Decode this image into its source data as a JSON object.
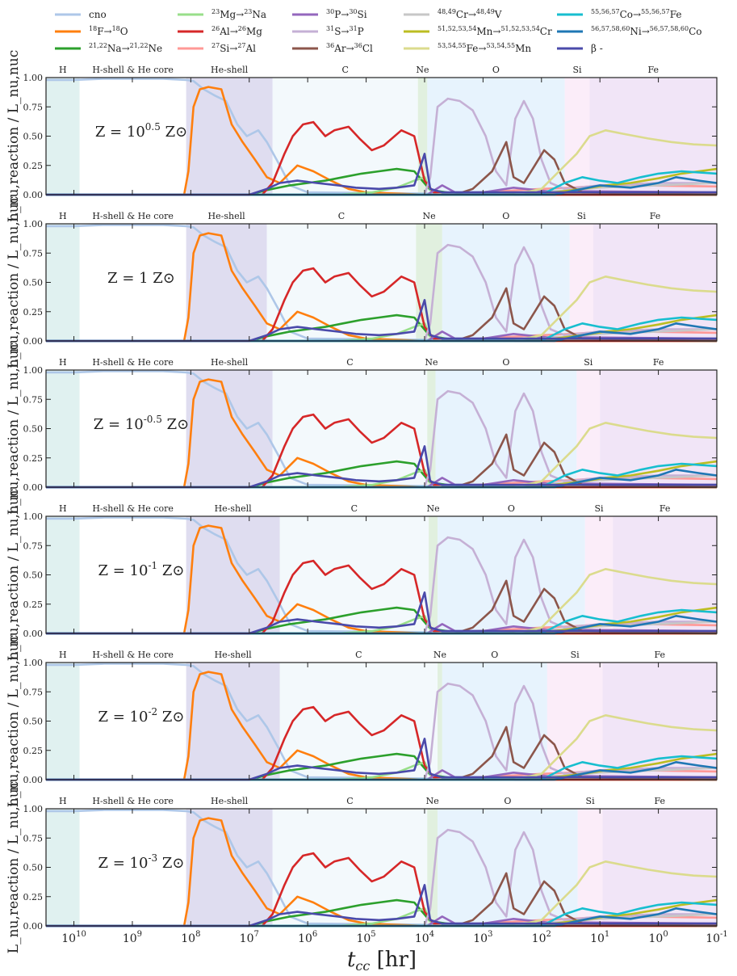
{
  "chart_data": {
    "type": "line",
    "xlabel": "t_cc [hr]",
    "ylabel": "L_nu,reaction / L_nu,nuc",
    "x_scale": "log-reversed",
    "xlim": [
      30000000000.0,
      0.1
    ],
    "ylim": [
      0,
      1
    ],
    "x_ticks": [
      {
        "label": "10^10",
        "value": 10000000000.0
      },
      {
        "label": "10^9",
        "value": 1000000000.0
      },
      {
        "label": "10^8",
        "value": 100000000.0
      },
      {
        "label": "10^7",
        "value": 10000000.0
      },
      {
        "label": "10^6",
        "value": 1000000.0
      },
      {
        "label": "10^5",
        "value": 100000.0
      },
      {
        "label": "10^4",
        "value": 10000.0
      },
      {
        "label": "10^3",
        "value": 1000.0
      },
      {
        "label": "10^2",
        "value": 100.0
      },
      {
        "label": "10^1",
        "value": 10
      },
      {
        "label": "10^0",
        "value": 1
      },
      {
        "label": "10^-1",
        "value": 0.1
      }
    ],
    "y_ticks": [
      "0.00",
      "0.25",
      "0.50",
      "0.75",
      "1.00"
    ],
    "legend": [
      {
        "key": "cno",
        "label": "cno",
        "color": "#aec7e8"
      },
      {
        "key": "f18",
        "label": "18F→18O",
        "color": "#ff7f0e"
      },
      {
        "key": "na",
        "label": "21,22Na→21,22Ne",
        "color": "#2ca02c"
      },
      {
        "key": "mg23",
        "label": "23Mg→23Na",
        "color": "#98df8a"
      },
      {
        "key": "al26",
        "label": "26Al→26Mg",
        "color": "#d62728"
      },
      {
        "key": "si27",
        "label": "27Si→27Al",
        "color": "#ff9896"
      },
      {
        "key": "p30",
        "label": "30P→30Si",
        "color": "#9467bd"
      },
      {
        "key": "s31",
        "label": "31S→31P",
        "color": "#c5b0d5"
      },
      {
        "key": "ar36",
        "label": "36Ar→36Cl",
        "color": "#8c564b"
      },
      {
        "key": "cr",
        "label": "48,49Cr→48,49V",
        "color": "#c7c7c7"
      },
      {
        "key": "mn",
        "label": "51,52,53,54Mn→51,52,53,54Cr",
        "color": "#bcbd22"
      },
      {
        "key": "fe",
        "label": "53,54,55Fe→53,54,55Mn",
        "color": "#dbdb8d"
      },
      {
        "key": "co",
        "label": "55,56,57Co→55,56,57Fe",
        "color": "#17becf"
      },
      {
        "key": "ni",
        "label": "56,57,58,60Ni→56,57,58,60Co",
        "color": "#1f77b4"
      },
      {
        "key": "beta",
        "label": "β -",
        "color": "#4a4aaa"
      }
    ],
    "phase_labels": [
      "H",
      "H-shell & He core",
      "He-shell",
      "C",
      "Ne",
      "O",
      "Si",
      "Fe"
    ],
    "panels": [
      {
        "label": "Z = 10^0.5 Z⊙",
        "phases": [
          8000000000.0,
          120000000.0,
          4000000.0,
          13000.0,
          9000.0,
          40,
          15
        ]
      },
      {
        "label": "Z = 1 Z⊙",
        "phases": [
          8000000000.0,
          120000000.0,
          5000000.0,
          14000.0,
          5000.0,
          33,
          13
        ]
      },
      {
        "label": "Z = 10^-0.5 Z⊙",
        "phases": [
          8000000000.0,
          120000000.0,
          4000000.0,
          9000.0,
          6500.0,
          25,
          10
        ]
      },
      {
        "label": "Z = 10^-1 Z⊙",
        "phases": [
          8000000000.0,
          120000000.0,
          3000000.0,
          8500.0,
          6000.0,
          18,
          6
        ]
      },
      {
        "label": "Z = 10^-2 Z⊙",
        "phases": [
          8000000000.0,
          120000000.0,
          3000000.0,
          6000.0,
          5000.0,
          80,
          9
        ]
      },
      {
        "label": "Z = 10^-3 Z⊙",
        "phases": [
          8000000000.0,
          120000000.0,
          4000000.0,
          9000.0,
          6000.0,
          24,
          9
        ]
      }
    ],
    "series": [
      {
        "key": "cno",
        "points": [
          [
            30000000000.0,
            0.98
          ],
          [
            10000000000.0,
            0.98
          ],
          [
            3000000000.0,
            0.99
          ],
          [
            1000000000.0,
            0.99
          ],
          [
            300000000.0,
            0.99
          ],
          [
            120000000.0,
            0.98
          ],
          [
            90000000.0,
            0.97
          ],
          [
            60000000.0,
            0.9
          ],
          [
            40000000.0,
            0.85
          ],
          [
            25000000.0,
            0.8
          ],
          [
            16000000.0,
            0.6
          ],
          [
            11000000.0,
            0.5
          ],
          [
            7000000.0,
            0.55
          ],
          [
            5000000.0,
            0.45
          ],
          [
            3000000.0,
            0.25
          ],
          [
            2000000.0,
            0.08
          ],
          [
            1000000.0,
            0.02
          ],
          [
            10000.0,
            0.01
          ],
          [
            0.1,
            0.0
          ]
        ]
      },
      {
        "key": "f18",
        "points": [
          [
            30000000000.0,
            0.0
          ],
          [
            130000000.0,
            0.0
          ],
          [
            110000000.0,
            0.2
          ],
          [
            90000000.0,
            0.75
          ],
          [
            70000000.0,
            0.9
          ],
          [
            50000000.0,
            0.92
          ],
          [
            30000000.0,
            0.9
          ],
          [
            20000000.0,
            0.6
          ],
          [
            13000000.0,
            0.45
          ],
          [
            8000000.0,
            0.3
          ],
          [
            5000000.0,
            0.15
          ],
          [
            3000000.0,
            0.1
          ],
          [
            1500000.0,
            0.25
          ],
          [
            800000.0,
            0.2
          ],
          [
            400000.0,
            0.12
          ],
          [
            200000.0,
            0.05
          ],
          [
            100000.0,
            0.02
          ],
          [
            10000.0,
            0.0
          ],
          [
            0.1,
            0.0
          ]
        ]
      },
      {
        "key": "na",
        "points": [
          [
            30000000000.0,
            0.0
          ],
          [
            10000000.0,
            0.0
          ],
          [
            5000000.0,
            0.04
          ],
          [
            2000000.0,
            0.08
          ],
          [
            1000000.0,
            0.1
          ],
          [
            500000.0,
            0.12
          ],
          [
            250000.0,
            0.15
          ],
          [
            120000.0,
            0.18
          ],
          [
            60000.0,
            0.2
          ],
          [
            30000.0,
            0.22
          ],
          [
            15000.0,
            0.2
          ],
          [
            8000.0,
            0.04
          ],
          [
            3000.0,
            0.01
          ],
          [
            0.1,
            0.0
          ]
        ]
      },
      {
        "key": "mg23",
        "points": [
          [
            30000000000.0,
            0.0
          ],
          [
            300000.0,
            0.0
          ],
          [
            80000.0,
            0.02
          ],
          [
            30000.0,
            0.06
          ],
          [
            15000.0,
            0.12
          ],
          [
            10000.0,
            0.15
          ],
          [
            8000.0,
            0.04
          ],
          [
            4000.0,
            0.01
          ],
          [
            0.1,
            0.0
          ]
        ]
      },
      {
        "key": "al26",
        "points": [
          [
            30000000000.0,
            0.0
          ],
          [
            6000000.0,
            0.0
          ],
          [
            4000000.0,
            0.1
          ],
          [
            2500000.0,
            0.35
          ],
          [
            1800000.0,
            0.5
          ],
          [
            1200000.0,
            0.6
          ],
          [
            800000.0,
            0.62
          ],
          [
            500000.0,
            0.5
          ],
          [
            350000.0,
            0.55
          ],
          [
            200000.0,
            0.58
          ],
          [
            130000.0,
            0.48
          ],
          [
            80000.0,
            0.38
          ],
          [
            50000.0,
            0.42
          ],
          [
            25000.0,
            0.55
          ],
          [
            15000.0,
            0.5
          ],
          [
            10000.0,
            0.12
          ],
          [
            7000.0,
            0.02
          ],
          [
            3000.0,
            0.01
          ],
          [
            1500.0,
            0.0
          ],
          [
            0.1,
            0.0
          ]
        ]
      },
      {
        "key": "si27",
        "points": [
          [
            30000000000.0,
            0.0
          ],
          [
            10000.0,
            0.0
          ],
          [
            3000.0,
            0.01
          ],
          [
            500.0,
            0.03
          ],
          [
            100.0,
            0.05
          ],
          [
            30,
            0.06
          ],
          [
            8,
            0.08
          ],
          [
            2,
            0.08
          ],
          [
            0.1,
            0.07
          ]
        ]
      },
      {
        "key": "p30",
        "points": [
          [
            30000000000.0,
            0.0
          ],
          [
            9000.0,
            0.0
          ],
          [
            5000.0,
            0.08
          ],
          [
            3000.0,
            0.02
          ],
          [
            1000.0,
            0.02
          ],
          [
            300.0,
            0.06
          ],
          [
            80,
            0.03
          ],
          [
            20,
            0.03
          ],
          [
            0.1,
            0.02
          ]
        ]
      },
      {
        "key": "s31",
        "points": [
          [
            30000000000.0,
            0.0
          ],
          [
            10000.0,
            0.0
          ],
          [
            8000.0,
            0.15
          ],
          [
            6000.0,
            0.75
          ],
          [
            4000.0,
            0.82
          ],
          [
            2500.0,
            0.8
          ],
          [
            1500.0,
            0.72
          ],
          [
            900.0,
            0.5
          ],
          [
            600.0,
            0.2
          ],
          [
            400.0,
            0.08
          ],
          [
            280.0,
            0.65
          ],
          [
            200.0,
            0.8
          ],
          [
            140.0,
            0.65
          ],
          [
            100.0,
            0.3
          ],
          [
            70,
            0.1
          ],
          [
            40,
            0.05
          ],
          [
            10,
            0.08
          ],
          [
            1,
            0.1
          ],
          [
            0.1,
            0.1
          ]
        ]
      },
      {
        "key": "ar36",
        "points": [
          [
            30000000000.0,
            0.0
          ],
          [
            3000.0,
            0.0
          ],
          [
            1500.0,
            0.05
          ],
          [
            700.0,
            0.2
          ],
          [
            400.0,
            0.45
          ],
          [
            300.0,
            0.15
          ],
          [
            200.0,
            0.1
          ],
          [
            130.0,
            0.25
          ],
          [
            90,
            0.38
          ],
          [
            60,
            0.3
          ],
          [
            40,
            0.1
          ],
          [
            20,
            0.02
          ],
          [
            0.1,
            0.0
          ]
        ]
      },
      {
        "key": "cr",
        "points": [
          [
            30000000000.0,
            0.0
          ],
          [
            1000.0,
            0.0
          ],
          [
            100.0,
            0.02
          ],
          [
            30,
            0.04
          ],
          [
            10,
            0.06
          ],
          [
            1,
            0.08
          ],
          [
            0.1,
            0.1
          ]
        ]
      },
      {
        "key": "mn",
        "points": [
          [
            30000000000.0,
            0.0
          ],
          [
            500.0,
            0.0
          ],
          [
            60,
            0.02
          ],
          [
            20,
            0.05
          ],
          [
            8,
            0.08
          ],
          [
            3,
            0.1
          ],
          [
            1,
            0.14
          ],
          [
            0.4,
            0.18
          ],
          [
            0.1,
            0.22
          ]
        ]
      },
      {
        "key": "fe",
        "points": [
          [
            30000000000.0,
            0.0
          ],
          [
            300.0,
            0.0
          ],
          [
            100.0,
            0.05
          ],
          [
            50,
            0.2
          ],
          [
            25,
            0.35
          ],
          [
            15,
            0.5
          ],
          [
            8,
            0.55
          ],
          [
            4,
            0.52
          ],
          [
            1.5,
            0.48
          ],
          [
            0.6,
            0.45
          ],
          [
            0.25,
            0.43
          ],
          [
            0.1,
            0.42
          ]
        ]
      },
      {
        "key": "co",
        "points": [
          [
            30000000000.0,
            0.0
          ],
          [
            100.0,
            0.0
          ],
          [
            40,
            0.1
          ],
          [
            20,
            0.15
          ],
          [
            10,
            0.12
          ],
          [
            5,
            0.1
          ],
          [
            2,
            0.15
          ],
          [
            1,
            0.18
          ],
          [
            0.4,
            0.2
          ],
          [
            0.1,
            0.18
          ]
        ]
      },
      {
        "key": "ni",
        "points": [
          [
            30000000000.0,
            0.0
          ],
          [
            60,
            0.0
          ],
          [
            25,
            0.04
          ],
          [
            10,
            0.08
          ],
          [
            3,
            0.06
          ],
          [
            1,
            0.1
          ],
          [
            0.5,
            0.15
          ],
          [
            0.2,
            0.12
          ],
          [
            0.1,
            0.1
          ]
        ]
      },
      {
        "key": "beta",
        "points": [
          [
            30000000000.0,
            0.0
          ],
          [
            10000000.0,
            0.0
          ],
          [
            5000000.0,
            0.05
          ],
          [
            3000000.0,
            0.1
          ],
          [
            1500000.0,
            0.12
          ],
          [
            700000.0,
            0.1
          ],
          [
            300000.0,
            0.08
          ],
          [
            150000.0,
            0.06
          ],
          [
            60000.0,
            0.05
          ],
          [
            30000.0,
            0.06
          ],
          [
            15000.0,
            0.08
          ],
          [
            10000.0,
            0.35
          ],
          [
            8000.0,
            0.05
          ],
          [
            5000.0,
            0.02
          ],
          [
            300.0,
            0.02
          ],
          [
            100.0,
            0.02
          ],
          [
            10,
            0.02
          ],
          [
            1,
            0.02
          ],
          [
            0.1,
            0.02
          ]
        ]
      }
    ]
  }
}
